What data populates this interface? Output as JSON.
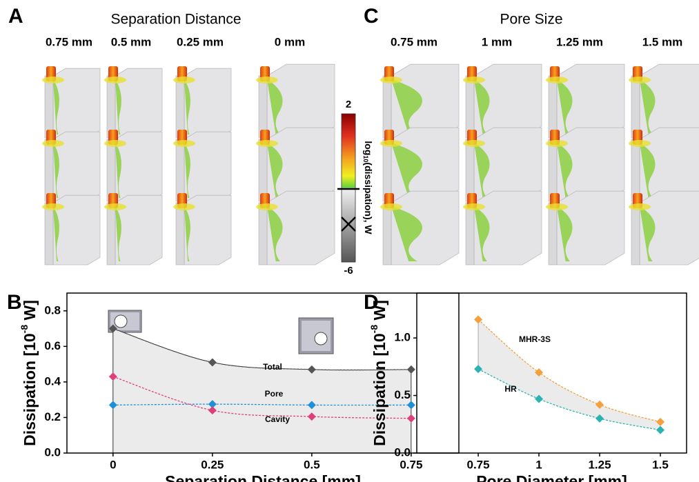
{
  "panels": [
    {
      "letter": "A",
      "title": "Separation Distance",
      "labels": [
        "0.75 mm",
        "0.5 mm",
        "0.25 mm",
        "0 mm"
      ]
    },
    {
      "letter": "C",
      "title": "Pore Size",
      "labels": [
        "0.75 mm",
        "1 mm",
        "1.25 mm",
        "1.5 mm"
      ]
    }
  ],
  "colorbar": {
    "max": 2,
    "min": -6,
    "label_main": "log",
    "label_sub": "10",
    "label_rest": "(dissipation), W"
  },
  "chart_data": [
    {
      "type": "line",
      "letter": "B",
      "xlabel": "Separation Distance [mm]",
      "ylabel": "Dissipation [10",
      "ylabel_sup": "-8",
      "ylabel_end": " W]",
      "x": [
        0,
        0.25,
        0.5,
        0.75
      ],
      "series": [
        {
          "name": "Total",
          "color": "#555555",
          "label_color": "#000000",
          "values": [
            0.7,
            0.51,
            0.47,
            0.47
          ]
        },
        {
          "name": "Pore",
          "color": "#1f8fd8",
          "label_color": "#29a3e0",
          "values": [
            0.27,
            0.275,
            0.27,
            0.27
          ]
        },
        {
          "name": "Cavity",
          "color": "#e0407a",
          "label_color": "#e8383a",
          "values": [
            0.43,
            0.24,
            0.205,
            0.195
          ]
        }
      ],
      "xlim": [
        -0.116,
        0.87
      ],
      "ylim": [
        0,
        0.9
      ],
      "xticks": [
        0,
        0.25,
        0.5,
        0.75
      ],
      "yticks": [
        {
          "value": 0,
          "label": "0.0"
        },
        0.2,
        0.4,
        0.6,
        0.8
      ],
      "area": "below",
      "area_color": "#ebebeb"
    },
    {
      "type": "line",
      "letter": "D",
      "xlabel": "Pore Diameter [mm]",
      "ylabel": "Dissipation [10",
      "ylabel_sup": "-8",
      "ylabel_end": " W]",
      "x": [
        0.75,
        1,
        1.25,
        1.5
      ],
      "series": [
        {
          "name": "MHR-3S",
          "color": "#f5a03c",
          "label_color": "#000000",
          "values": [
            1.16,
            0.7,
            0.42,
            0.27
          ]
        },
        {
          "name": "HR",
          "color": "#2ab3b0",
          "label_color": "#000000",
          "values": [
            0.73,
            0.47,
            0.3,
            0.2
          ]
        }
      ],
      "xlim": [
        0.497,
        1.608
      ],
      "ylim": [
        0,
        1.39
      ],
      "xticks": [
        0.75,
        1,
        1.25,
        1.5
      ],
      "yticks": [
        {
          "value": 0,
          "label": "0.0"
        },
        0.5,
        {
          "value": 1,
          "label": "1.0"
        }
      ],
      "area": "between",
      "area_color": "#ebebeb"
    }
  ]
}
